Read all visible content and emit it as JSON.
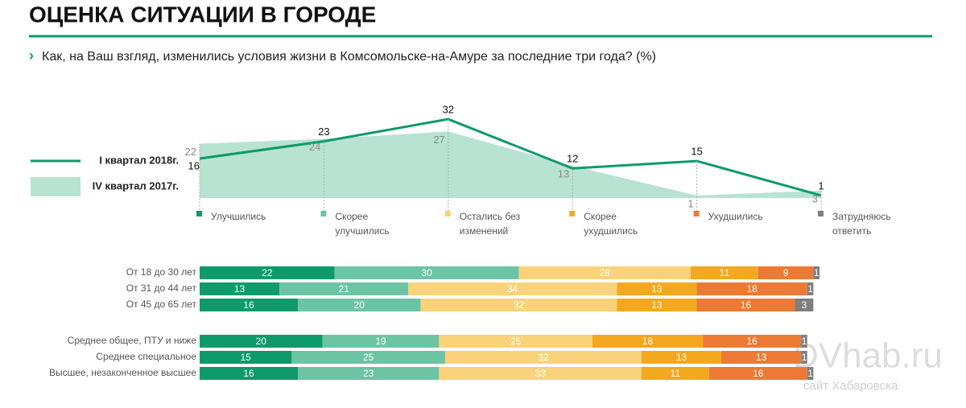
{
  "title": "ОЦЕНКА СИТУАЦИИ В ГОРОДЕ",
  "subtitle": "Как, на Ваш взгляд, изменились условия жизни в Комсомольске-на-Амуре за последние три года? (%)",
  "watermark": {
    "brand": "DVhab.ru",
    "tagline": "сайт Хабаровска"
  },
  "chart_data": [
    {
      "type": "line",
      "categories": [
        "Улучшились",
        "Скорее улучшились",
        "Остались без изменений",
        "Скорее ухудшились",
        "Ухудшились",
        "Затрудняюсь ответить"
      ],
      "category_colors": [
        "#0e9a6a",
        "#6cc4a4",
        "#f9d27a",
        "#f4a81d",
        "#ec7a34",
        "#7f7f7f"
      ],
      "ylim": [
        0,
        33
      ],
      "series": [
        {
          "name": "I квартал 2018г.",
          "color": "#0e9a6a",
          "style": "line",
          "values": [
            16,
            23,
            32,
            12,
            15,
            1
          ]
        },
        {
          "name": "IV квартал 2017г.",
          "color": "#b8e3d2",
          "style": "area",
          "values": [
            22,
            24,
            27,
            13,
            1,
            3
          ]
        }
      ]
    },
    {
      "type": "stacked-bar",
      "categories": [
        "От 18 до 30 лет",
        "От 31 до 44 лет",
        "От 45 до 65 лет",
        "Среднее общее, ПТУ и ниже",
        "Среднее специальное",
        "Высшее, незаконченное высшее"
      ],
      "xlim": [
        0,
        101
      ],
      "series": [
        {
          "color": "#0e9a6a",
          "values": [
            22,
            13,
            16,
            20,
            15,
            16
          ]
        },
        {
          "color": "#6cc4a4",
          "values": [
            30,
            21,
            20,
            19,
            25,
            23
          ]
        },
        {
          "color": "#f9d27a",
          "values": [
            28,
            34,
            32,
            25,
            32,
            33
          ]
        },
        {
          "color": "#f4a81d",
          "values": [
            11,
            13,
            13,
            18,
            13,
            11
          ]
        },
        {
          "color": "#ec7a34",
          "values": [
            9,
            18,
            16,
            16,
            13,
            16
          ]
        },
        {
          "color": "#7f7f7f",
          "values": [
            1,
            1,
            3,
            1,
            1,
            1
          ]
        }
      ]
    }
  ]
}
